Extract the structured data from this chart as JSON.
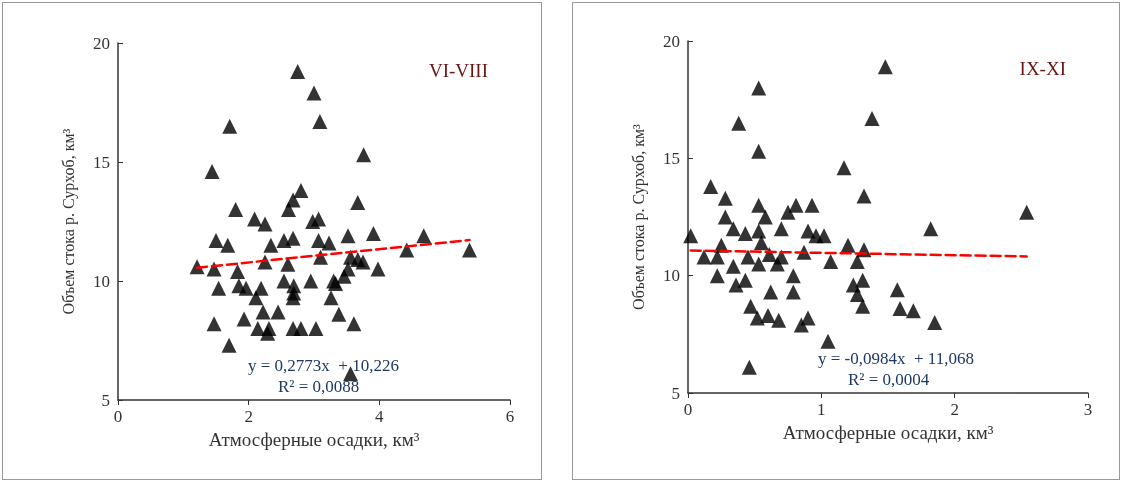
{
  "chart_data": [
    {
      "type": "scatter",
      "xlabel": "Атмосферные осадки, км³",
      "ylabel": "Объем стока р. Сурхоб, км³",
      "annotations": [
        "VI-VIII",
        "y = 0,2773x  + 10,226",
        "R² = 0,0088"
      ],
      "xlim": [
        0,
        6
      ],
      "xticks": [
        0,
        2,
        4,
        6
      ],
      "ylim": [
        5,
        20
      ],
      "yticks": [
        5,
        10,
        15,
        20
      ],
      "grid": false,
      "marker": "triangle",
      "series": [
        {
          "color": "#000000",
          "x": [
            2.75,
            3.0,
            3.09,
            1.71,
            3.76,
            1.44,
            2.8,
            3.67,
            2.68,
            2.61,
            1.8,
            2.09,
            2.25,
            2.98,
            3.07,
            3.91,
            4.68,
            1.5,
            1.68,
            2.34,
            2.54,
            2.68,
            3.52,
            3.07,
            3.23,
            4.42,
            5.38,
            1.21,
            1.47,
            1.83,
            2.25,
            2.6,
            3.1,
            3.56,
            3.67,
            3.75,
            3.98,
            3.52,
            3.46,
            1.54,
            1.85,
            1.96,
            2.19,
            2.11,
            2.54,
            2.69,
            2.69,
            2.68,
            2.95,
            3.3,
            3.33,
            3.26,
            2.22,
            2.45,
            1.93,
            1.47,
            3.38,
            3.61,
            2.14,
            2.31,
            2.29,
            2.68,
            2.8,
            3.03,
            1.7,
            3.56
          ],
          "values": [
            18.8,
            17.9,
            16.7,
            16.5,
            15.3,
            14.6,
            13.8,
            13.3,
            13.4,
            13.0,
            13.0,
            12.6,
            12.4,
            12.5,
            12.6,
            12.0,
            11.9,
            11.7,
            11.5,
            11.5,
            11.7,
            11.8,
            11.9,
            11.7,
            11.6,
            11.3,
            11.3,
            10.6,
            10.5,
            10.4,
            10.8,
            10.7,
            11.0,
            11.0,
            10.9,
            10.8,
            10.5,
            10.5,
            10.2,
            9.7,
            9.8,
            9.7,
            9.7,
            9.3,
            10.0,
            9.8,
            9.5,
            9.3,
            10.0,
            10.0,
            9.9,
            9.3,
            8.7,
            8.7,
            8.4,
            8.2,
            8.6,
            8.2,
            8.0,
            8.0,
            7.8,
            8.0,
            8.0,
            8.0,
            7.3,
            6.1
          ]
        },
        {
          "type": "line",
          "color": "#ff0000",
          "line_style": "dashed",
          "marker": "none",
          "x": [
            1.21,
            5.38
          ],
          "values": [
            10.56,
            11.72
          ]
        }
      ]
    },
    {
      "type": "scatter",
      "xlabel": "Атмосферные осадки, км³",
      "ylabel": "Объем стока р. Сурхоб, км³",
      "annotations": [
        "IX-XI",
        "y = -0,0984x  + 11,068",
        "R² = 0,0004"
      ],
      "xlim": [
        0,
        3
      ],
      "xticks": [
        0,
        1,
        2,
        3
      ],
      "ylim": [
        5,
        20
      ],
      "yticks": [
        5,
        10,
        15,
        20
      ],
      "grid": false,
      "marker": "triangle",
      "series": [
        {
          "color": "#000000",
          "x": [
            0.53,
            0.38,
            0.53,
            0.17,
            0.28,
            0.53,
            0.58,
            0.81,
            0.75,
            0.93,
            0.28,
            0.34,
            0.43,
            0.53,
            0.7,
            0.9,
            0.96,
            1.02,
            0.02,
            1.17,
            1.32,
            1.38,
            1.48,
            1.2,
            1.32,
            0.25,
            0.12,
            0.22,
            0.55,
            0.34,
            0.45,
            0.61,
            0.7,
            0.67,
            0.53,
            0.87,
            1.07,
            1.27,
            0.22,
            0.36,
            0.43,
            0.79,
            1.24,
            1.31,
            1.27,
            0.62,
            0.79,
            1.31,
            0.47,
            0.52,
            0.6,
            0.68,
            0.85,
            0.9,
            1.05,
            0.46,
            2.54,
            1.82,
            1.57,
            1.59,
            1.69,
            1.85
          ],
          "values": [
            18.0,
            16.5,
            15.3,
            13.8,
            13.3,
            13.0,
            12.5,
            13.0,
            12.7,
            13.0,
            12.5,
            12.0,
            11.8,
            11.9,
            12.0,
            11.9,
            11.7,
            11.7,
            11.7,
            14.6,
            13.4,
            16.7,
            18.9,
            11.3,
            11.1,
            11.3,
            10.8,
            10.8,
            11.4,
            10.4,
            10.8,
            10.9,
            10.8,
            10.5,
            10.5,
            11.0,
            10.6,
            10.6,
            10.0,
            9.6,
            9.8,
            10.0,
            9.6,
            9.8,
            9.2,
            9.3,
            9.3,
            8.7,
            8.7,
            8.2,
            8.3,
            8.1,
            7.9,
            8.2,
            7.2,
            6.1,
            12.7,
            12.0,
            9.4,
            8.6,
            8.5,
            8.0
          ]
        },
        {
          "type": "line",
          "color": "#ff0000",
          "line_style": "dashed",
          "marker": "none",
          "x": [
            0.02,
            2.54
          ],
          "values": [
            11.07,
            10.82
          ]
        }
      ]
    }
  ]
}
